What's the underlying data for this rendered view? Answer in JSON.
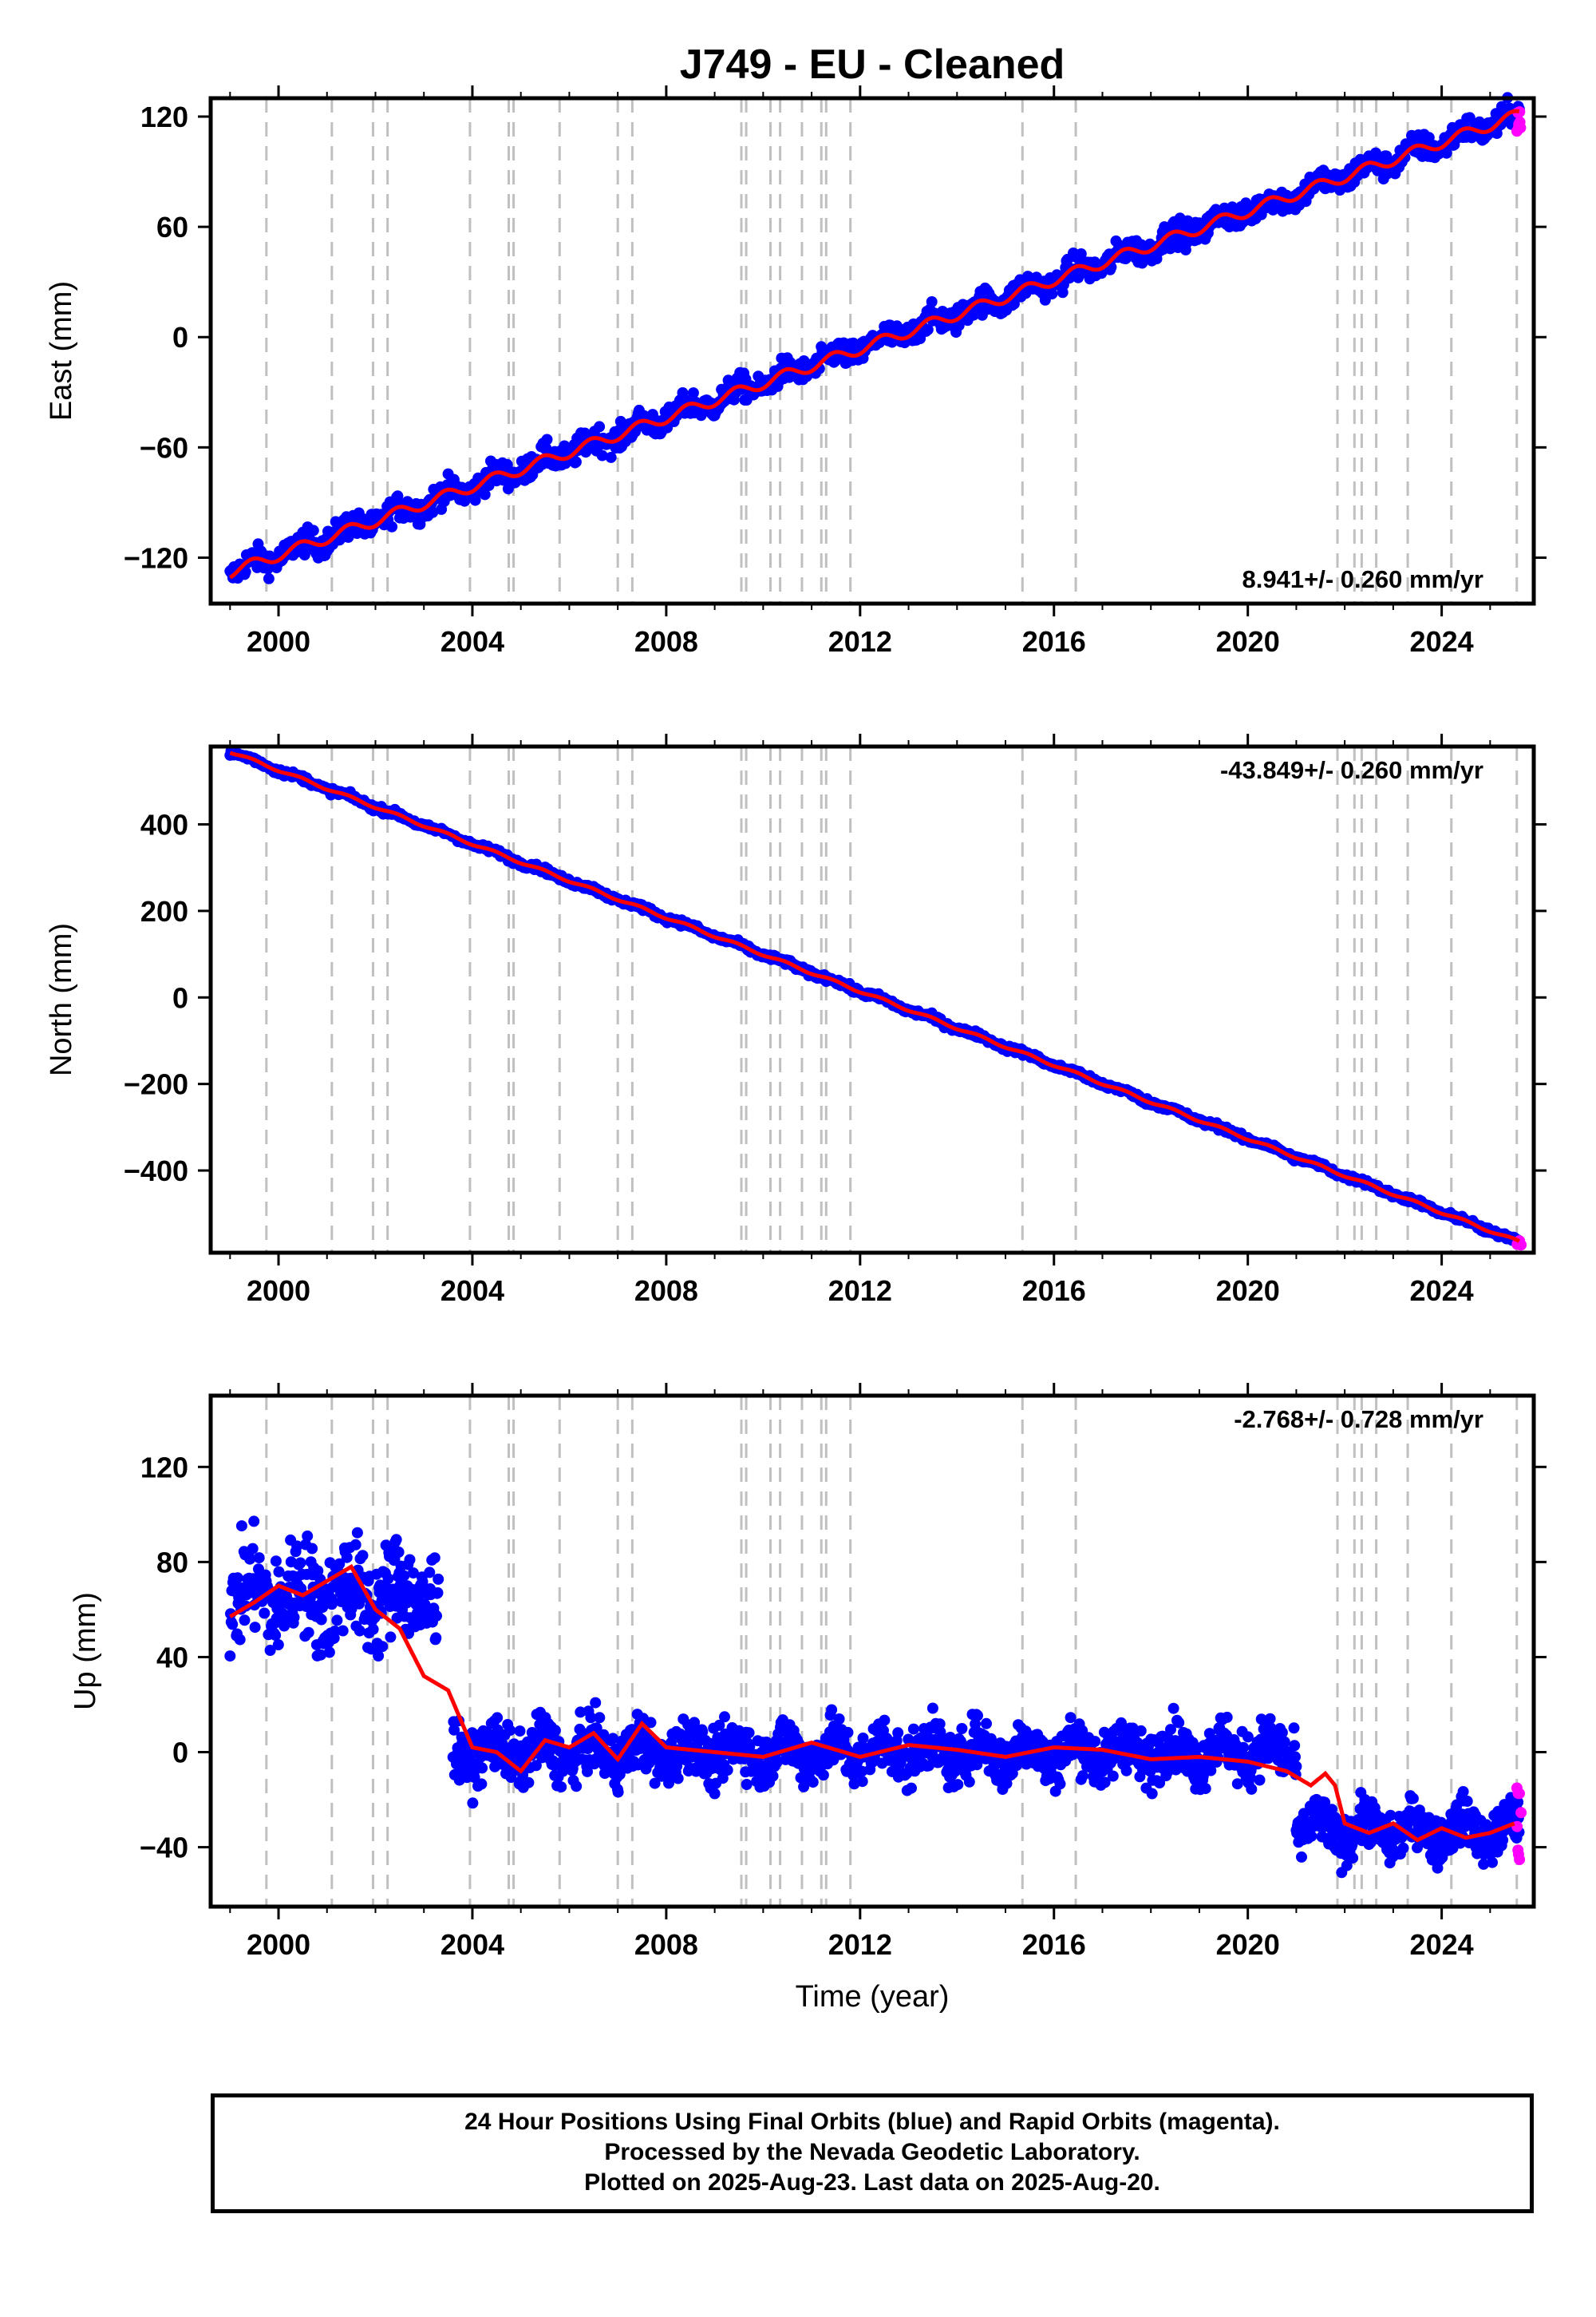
{
  "title": "J749  - EU - Cleaned",
  "xlabel": "Time (year)",
  "footer": {
    "line1": "24 Hour Positions Using Final Orbits (blue) and Rapid Orbits (magenta).",
    "line2": "Processed by the Nevada Geodetic Laboratory.",
    "line3": "Plotted on 2025-Aug-23. Last data on 2025-Aug-20."
  },
  "colors": {
    "final_orbits": "#0000ff",
    "rapid_orbits": "#ff00ff",
    "model_fit": "#ff0000",
    "event_lines": "#c0c0c0"
  },
  "chart_data": [
    {
      "type": "scatter",
      "component": "east",
      "ylabel": "East (mm)",
      "rate_text": "8.941+/- 0.260 mm/yr",
      "rate_position": "bottom-right",
      "xlim": [
        1998.6,
        2025.9
      ],
      "ylim": [
        -145,
        130
      ],
      "xticks": [
        2000,
        2004,
        2008,
        2012,
        2016,
        2020,
        2024
      ],
      "yticks": [
        -120,
        -60,
        0,
        60,
        120
      ],
      "event_lines": [
        1999.75,
        2001.1,
        2001.95,
        2002.25,
        2003.95,
        2004.75,
        2004.85,
        2005.8,
        2007.0,
        2007.3,
        2009.55,
        2009.65,
        2010.15,
        2010.35,
        2010.8,
        2011.2,
        2011.3,
        2011.8,
        2015.35,
        2016.45,
        2021.85,
        2022.2,
        2022.35,
        2022.65,
        2023.3,
        2024.2,
        2025.55
      ],
      "trend_points": [
        [
          1999.0,
          -128
        ],
        [
          2025.6,
          121
        ]
      ],
      "annual_amplitude": 3,
      "scatter": 5,
      "rapid_range": [
        2025.55,
        2025.64,
        112,
        124
      ]
    },
    {
      "type": "scatter",
      "component": "north",
      "ylabel": "North (mm)",
      "rate_text": "-43.849+/- 0.260 mm/yr",
      "rate_position": "top-right",
      "xlim": [
        1998.6,
        2025.9
      ],
      "ylim": [
        -590,
        580
      ],
      "xticks": [
        2000,
        2004,
        2008,
        2012,
        2016,
        2020,
        2024
      ],
      "yticks": [
        -400,
        -200,
        0,
        200,
        400
      ],
      "event_lines": [
        1999.75,
        2001.1,
        2001.95,
        2002.25,
        2003.95,
        2004.75,
        2004.85,
        2005.8,
        2007.0,
        2007.3,
        2009.55,
        2009.65,
        2010.15,
        2010.35,
        2010.8,
        2011.2,
        2011.3,
        2011.8,
        2015.35,
        2016.45,
        2021.85,
        2022.2,
        2022.35,
        2022.65,
        2023.3,
        2024.2,
        2025.55
      ],
      "trend_points": [
        [
          1999.0,
          568
        ],
        [
          2025.6,
          -565
        ]
      ],
      "annual_amplitude": 3,
      "scatter": 5,
      "rapid_range": [
        2025.55,
        2025.64,
        -572,
        -562
      ]
    },
    {
      "type": "scatter",
      "component": "up",
      "ylabel": "Up (mm)",
      "rate_text": "-2.768+/- 0.728 mm/yr",
      "rate_position": "top-right",
      "xlim": [
        1998.6,
        2025.9
      ],
      "ylim": [
        -65,
        150
      ],
      "xticks": [
        2000,
        2004,
        2008,
        2012,
        2016,
        2020,
        2024
      ],
      "yticks": [
        -40,
        0,
        40,
        80,
        120
      ],
      "event_lines": [
        1999.75,
        2001.1,
        2001.95,
        2002.25,
        2003.95,
        2004.75,
        2004.85,
        2005.8,
        2007.0,
        2007.3,
        2009.55,
        2009.65,
        2010.15,
        2010.35,
        2010.8,
        2011.2,
        2011.3,
        2011.8,
        2015.35,
        2016.45,
        2021.85,
        2022.2,
        2022.35,
        2022.65,
        2023.3,
        2024.2,
        2025.55
      ],
      "segments": [
        {
          "start": 1999.0,
          "end": 2003.3,
          "level": 66,
          "amp": 7,
          "scatter": 15
        },
        {
          "start": 2003.6,
          "end": 2021.0,
          "level": 0,
          "amp": 5,
          "scatter": 8
        },
        {
          "start": 2021.0,
          "end": 2025.6,
          "level": -33,
          "amp": 5,
          "scatter": 7
        }
      ],
      "fit_points": [
        [
          1999.0,
          57
        ],
        [
          1999.5,
          63
        ],
        [
          2000.0,
          70
        ],
        [
          2000.5,
          66
        ],
        [
          2001.0,
          72
        ],
        [
          2001.5,
          78
        ],
        [
          2002.0,
          60
        ],
        [
          2002.5,
          52
        ],
        [
          2003.0,
          32
        ],
        [
          2003.5,
          26
        ],
        [
          2004.0,
          2
        ],
        [
          2004.5,
          0
        ],
        [
          2005.0,
          -8
        ],
        [
          2005.5,
          5
        ],
        [
          2006.0,
          2
        ],
        [
          2006.5,
          8
        ],
        [
          2007.0,
          -3
        ],
        [
          2007.5,
          12
        ],
        [
          2008.0,
          2
        ],
        [
          2009.0,
          0
        ],
        [
          2010.0,
          -2
        ],
        [
          2011.0,
          4
        ],
        [
          2012.0,
          -2
        ],
        [
          2013.0,
          3
        ],
        [
          2014.0,
          1
        ],
        [
          2015.0,
          -2
        ],
        [
          2016.0,
          2
        ],
        [
          2017.0,
          1
        ],
        [
          2018.0,
          -3
        ],
        [
          2019.0,
          -2
        ],
        [
          2020.0,
          -4
        ],
        [
          2020.8,
          -8
        ],
        [
          2021.3,
          -14
        ],
        [
          2021.6,
          -9
        ],
        [
          2021.8,
          -14
        ],
        [
          2022.0,
          -30
        ],
        [
          2022.5,
          -34
        ],
        [
          2023.0,
          -30
        ],
        [
          2023.5,
          -37
        ],
        [
          2024.0,
          -32
        ],
        [
          2024.5,
          -36
        ],
        [
          2025.0,
          -34
        ],
        [
          2025.5,
          -30
        ]
      ],
      "rapid_range": [
        2025.55,
        2025.64,
        -55,
        -10
      ]
    }
  ]
}
